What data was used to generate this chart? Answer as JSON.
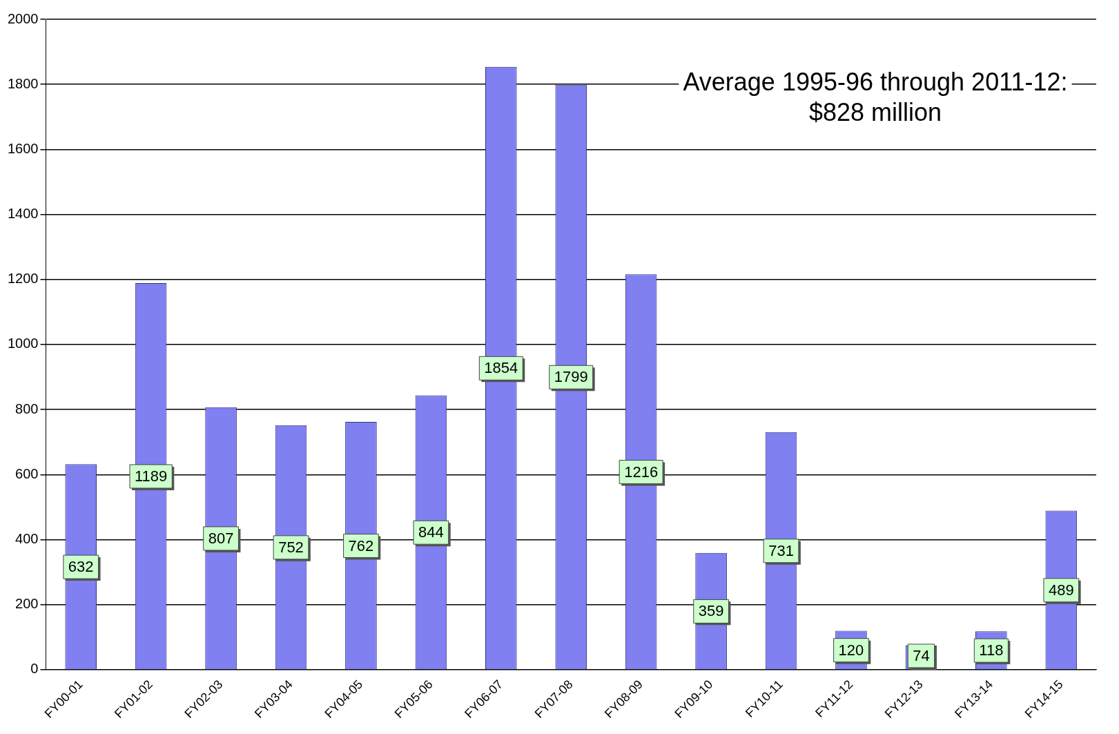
{
  "chart_data": {
    "type": "bar",
    "categories": [
      "FY00-01",
      "FY01-02",
      "FY02-03",
      "FY03-04",
      "FY04-05",
      "FY05-06",
      "FY06-07",
      "FY07-08",
      "FY08-09",
      "FY09-10",
      "FY10-11",
      "FY11-12",
      "FY12-13",
      "FY13-14",
      "FY14-15"
    ],
    "values": [
      632,
      1189,
      807,
      752,
      762,
      844,
      1854,
      1799,
      1216,
      359,
      731,
      120,
      74,
      118,
      489
    ],
    "color": "#8080f0",
    "ylim": [
      0,
      2000
    ],
    "yticks": [
      0,
      200,
      400,
      600,
      800,
      1000,
      1200,
      1400,
      1600,
      1800,
      2000
    ],
    "grid": "y",
    "legend": false,
    "data_labels": true,
    "annotations": [
      "Average 1995-96 through 2011-12: $828 million"
    ]
  }
}
